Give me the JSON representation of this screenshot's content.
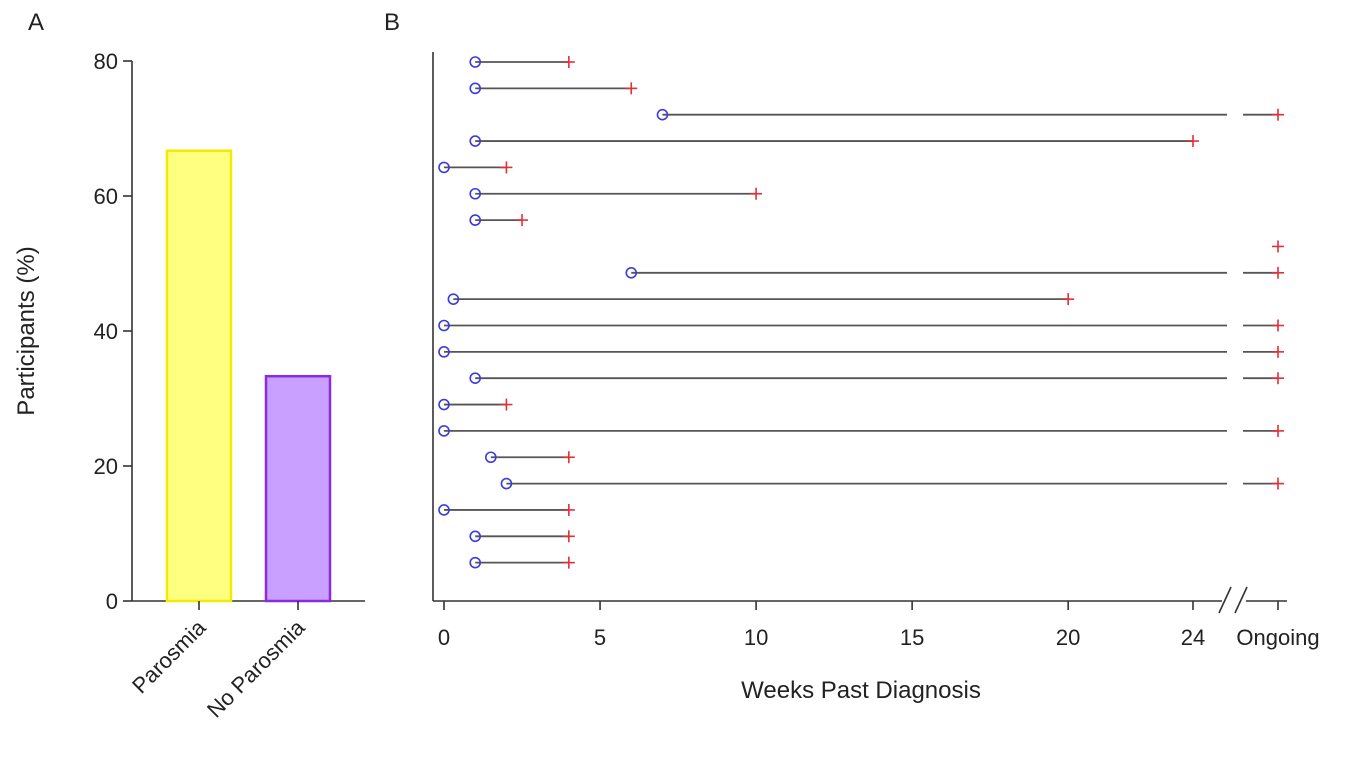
{
  "panels": {
    "a_label": "A",
    "b_label": "B"
  },
  "chart_data": [
    {
      "type": "bar",
      "categories": [
        "Parosmia",
        "No Parosmia"
      ],
      "values": [
        66.7,
        33.3
      ],
      "colors": {
        "Parosmia": {
          "fill": "#ffff80",
          "stroke": "#f2ea00"
        },
        "No Parosmia": {
          "fill": "#c9a0ff",
          "stroke": "#8a2be2"
        }
      },
      "ylabel": "Participants (%)",
      "xlabel": "",
      "ylim": [
        0,
        80
      ],
      "yticks": [
        0,
        20,
        40,
        60,
        80
      ],
      "ytick_labels": [
        "0",
        "20",
        "40",
        "60",
        "80"
      ],
      "xtick_rotation": -45,
      "grid": false
    },
    {
      "type": "timeline",
      "xlabel": "Weeks Past Diagnosis",
      "xlim": [
        0,
        24
      ],
      "xticks": [
        0,
        5,
        10,
        15,
        20,
        24
      ],
      "xtick_labels": [
        "0",
        "5",
        "10",
        "15",
        "20",
        "24"
      ],
      "extra_tick_label": "Ongoing",
      "axis_break": true,
      "onset_marker": "open circle",
      "recovery_marker": "plus",
      "colors": {
        "onset": "#3b3be0",
        "recovery": "#e0303a",
        "line": "#555555"
      },
      "rows": [
        {
          "onset": 1,
          "end": 4
        },
        {
          "onset": 1,
          "end": 6
        },
        {
          "onset": 7,
          "end": "Ongoing"
        },
        {
          "onset": 1,
          "end": 24
        },
        {
          "onset": 0,
          "end": 2
        },
        {
          "onset": 1,
          "end": 10
        },
        {
          "onset": 1,
          "end": 2.5
        },
        {
          "onset": null,
          "end": "Ongoing"
        },
        {
          "onset": 6,
          "end": "Ongoing"
        },
        {
          "onset": 0.3,
          "end": 20
        },
        {
          "onset": 0,
          "end": "Ongoing"
        },
        {
          "onset": 0,
          "end": "Ongoing"
        },
        {
          "onset": 1,
          "end": "Ongoing"
        },
        {
          "onset": 0,
          "end": 2
        },
        {
          "onset": 0,
          "end": "Ongoing"
        },
        {
          "onset": 1.5,
          "end": 4
        },
        {
          "onset": 2,
          "end": "Ongoing"
        },
        {
          "onset": 0,
          "end": 4
        },
        {
          "onset": 1,
          "end": 4
        },
        {
          "onset": 1,
          "end": 4
        }
      ],
      "grid": false
    }
  ]
}
